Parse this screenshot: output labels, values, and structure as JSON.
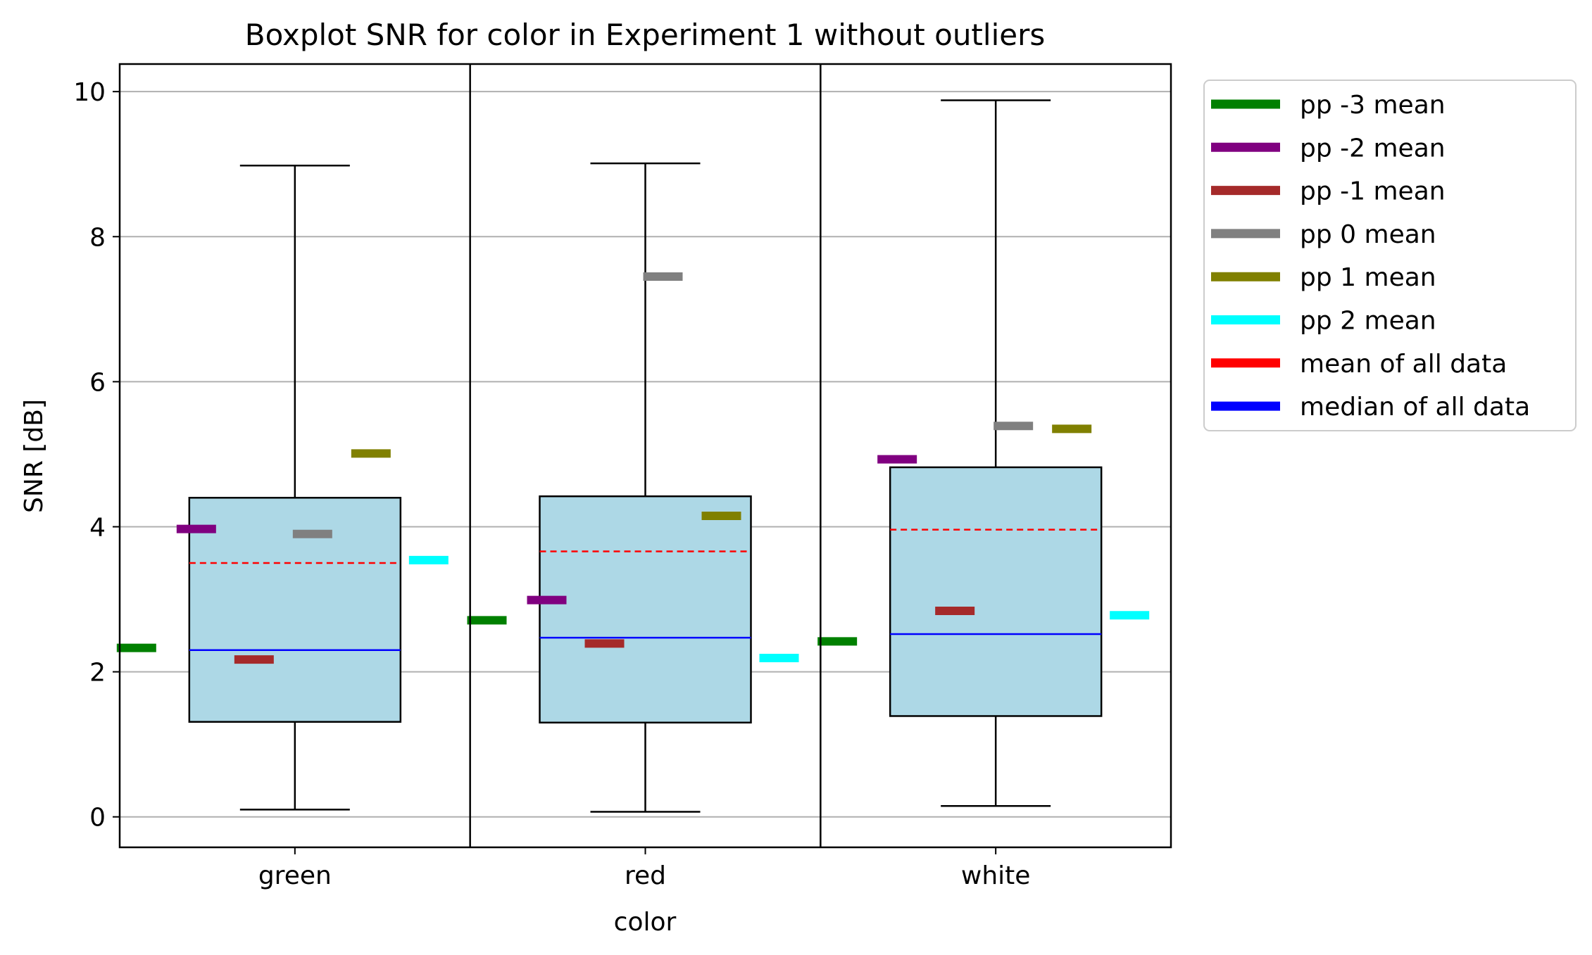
{
  "chart_data": {
    "type": "box",
    "title": "Boxplot SNR for color in Experiment 1 without outliers",
    "xlabel": "color",
    "ylabel": "SNR [dB]",
    "categories": [
      "green",
      "red",
      "white"
    ],
    "ylim": [
      -0.42,
      10.38
    ],
    "yticks": [
      0,
      2,
      4,
      6,
      8,
      10
    ],
    "grid": "y",
    "legend_position": "outside-right",
    "boxes": [
      {
        "category": "green",
        "whisker_low": 0.1,
        "q1": 1.31,
        "median": 2.3,
        "q3": 4.4,
        "whisker_high": 8.98,
        "mean": 3.5
      },
      {
        "category": "red",
        "whisker_low": 0.07,
        "q1": 1.3,
        "median": 2.47,
        "q3": 4.42,
        "whisker_high": 9.01,
        "mean": 3.66
      },
      {
        "category": "white",
        "whisker_low": 0.15,
        "q1": 1.39,
        "median": 2.52,
        "q3": 4.82,
        "whisker_high": 9.88,
        "mean": 3.96
      }
    ],
    "series": [
      {
        "name": "pp -3 mean",
        "color": "#008000",
        "values": [
          2.33,
          2.71,
          2.42
        ]
      },
      {
        "name": "pp -2 mean",
        "color": "#800080",
        "values": [
          3.97,
          2.99,
          4.93
        ]
      },
      {
        "name": "pp -1 mean",
        "color": "#a52a2a",
        "values": [
          2.17,
          2.39,
          2.84
        ]
      },
      {
        "name": "pp 0 mean",
        "color": "#808080",
        "values": [
          3.9,
          7.45,
          5.39
        ]
      },
      {
        "name": "pp 1 mean",
        "color": "#808000",
        "values": [
          5.01,
          4.15,
          5.35
        ]
      },
      {
        "name": "pp 2 mean",
        "color": "#00ffff",
        "values": [
          3.54,
          2.19,
          2.78
        ]
      }
    ],
    "legend": [
      {
        "label": "pp -3 mean",
        "color": "#008000"
      },
      {
        "label": "pp -2 mean",
        "color": "#800080"
      },
      {
        "label": "pp -1 mean",
        "color": "#a52a2a"
      },
      {
        "label": "pp 0 mean",
        "color": "#808080"
      },
      {
        "label": "pp 1 mean",
        "color": "#808000"
      },
      {
        "label": "pp 2 mean",
        "color": "#00ffff"
      },
      {
        "label": "mean of all data",
        "color": "#ff0000"
      },
      {
        "label": "median of all data",
        "color": "#0000ff"
      }
    ],
    "box_fill": "#add8e6",
    "mean_line_color": "#ff0000",
    "median_line_color": "#0000ff"
  }
}
